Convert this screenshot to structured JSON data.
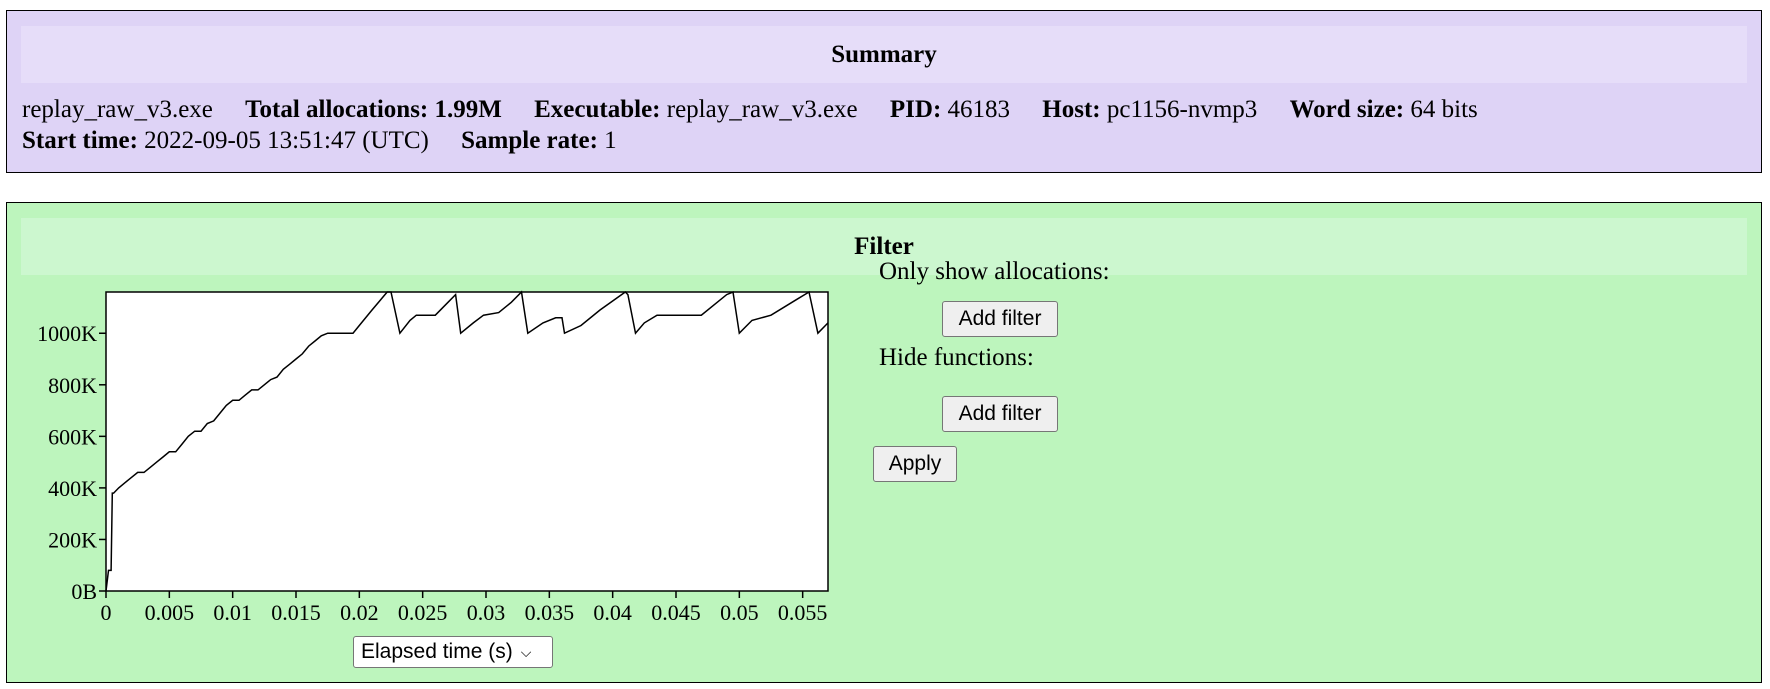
{
  "summary": {
    "title": "Summary",
    "program": "replay_raw_v3.exe",
    "fields": [
      {
        "label": "Total allocations:",
        "value": "1.99M",
        "bold_value": true
      },
      {
        "label": "Executable:",
        "value": "replay_raw_v3.exe"
      },
      {
        "label": "PID:",
        "value": "46183"
      },
      {
        "label": "Host:",
        "value": "pc1156-nvmp3"
      },
      {
        "label": "Word size:",
        "value": "64 bits"
      }
    ],
    "fields2": [
      {
        "label": "Start time:",
        "value": "2022-09-05 13:51:47 (UTC)"
      },
      {
        "label": "Sample rate:",
        "value": "1"
      }
    ]
  },
  "filter": {
    "title": "Filter",
    "only_show_label": "Only show allocations:",
    "hide_functions_label": "Hide functions:",
    "add_filter_label": "Add filter",
    "apply_label": "Apply",
    "x_axis_select": "Elapsed time (s)"
  },
  "chart_data": {
    "type": "line",
    "x_ticks": [
      "0",
      "0.005",
      "0.01",
      "0.015",
      "0.02",
      "0.025",
      "0.03",
      "0.035",
      "0.04",
      "0.045",
      "0.05",
      "0.055"
    ],
    "x_tick_values": [
      0,
      0.005,
      0.01,
      0.015,
      0.02,
      0.025,
      0.03,
      0.035,
      0.04,
      0.045,
      0.05,
      0.055
    ],
    "y_ticks": [
      "0B",
      "200K",
      "400K",
      "600K",
      "800K",
      "1000K"
    ],
    "y_tick_values": [
      0,
      200000,
      400000,
      600000,
      800000,
      1000000
    ],
    "xlim": [
      0,
      0.057
    ],
    "ylim": [
      0,
      1160000
    ],
    "series": [
      {
        "values": [
          [
            0,
            0
          ],
          [
            0.0002,
            80000
          ],
          [
            0.0004,
            80000
          ],
          [
            0.0005,
            380000
          ],
          [
            0.0006,
            380000
          ],
          [
            0.001,
            400000
          ],
          [
            0.0015,
            420000
          ],
          [
            0.002,
            440000
          ],
          [
            0.0025,
            460000
          ],
          [
            0.003,
            460000
          ],
          [
            0.0035,
            480000
          ],
          [
            0.004,
            500000
          ],
          [
            0.0045,
            520000
          ],
          [
            0.005,
            540000
          ],
          [
            0.0055,
            540000
          ],
          [
            0.006,
            570000
          ],
          [
            0.0065,
            600000
          ],
          [
            0.007,
            620000
          ],
          [
            0.0075,
            620000
          ],
          [
            0.008,
            650000
          ],
          [
            0.0085,
            660000
          ],
          [
            0.009,
            690000
          ],
          [
            0.0095,
            720000
          ],
          [
            0.01,
            740000
          ],
          [
            0.0105,
            740000
          ],
          [
            0.011,
            760000
          ],
          [
            0.0115,
            780000
          ],
          [
            0.012,
            780000
          ],
          [
            0.0125,
            800000
          ],
          [
            0.013,
            820000
          ],
          [
            0.0135,
            830000
          ],
          [
            0.014,
            860000
          ],
          [
            0.0145,
            880000
          ],
          [
            0.015,
            900000
          ],
          [
            0.0155,
            920000
          ],
          [
            0.016,
            950000
          ],
          [
            0.0165,
            970000
          ],
          [
            0.017,
            990000
          ],
          [
            0.0175,
            1000000
          ],
          [
            0.019,
            1000000
          ],
          [
            0.0195,
            1000000
          ],
          [
            0.02,
            1030000
          ],
          [
            0.021,
            1090000
          ],
          [
            0.0222,
            1160000
          ],
          [
            0.0225,
            1160000
          ],
          [
            0.0232,
            1000000
          ],
          [
            0.024,
            1050000
          ],
          [
            0.0245,
            1070000
          ],
          [
            0.026,
            1070000
          ],
          [
            0.027,
            1120000
          ],
          [
            0.0276,
            1150000
          ],
          [
            0.028,
            1000000
          ],
          [
            0.029,
            1040000
          ],
          [
            0.0298,
            1070000
          ],
          [
            0.031,
            1080000
          ],
          [
            0.032,
            1120000
          ],
          [
            0.0328,
            1160000
          ],
          [
            0.0333,
            1000000
          ],
          [
            0.0345,
            1040000
          ],
          [
            0.0355,
            1060000
          ],
          [
            0.036,
            1060000
          ],
          [
            0.0362,
            1000000
          ],
          [
            0.0375,
            1030000
          ],
          [
            0.039,
            1090000
          ],
          [
            0.041,
            1160000
          ],
          [
            0.0412,
            1150000
          ],
          [
            0.0418,
            1000000
          ],
          [
            0.0425,
            1040000
          ],
          [
            0.0435,
            1070000
          ],
          [
            0.047,
            1070000
          ],
          [
            0.049,
            1150000
          ],
          [
            0.0495,
            1160000
          ],
          [
            0.05,
            1000000
          ],
          [
            0.051,
            1050000
          ],
          [
            0.0525,
            1070000
          ],
          [
            0.0545,
            1130000
          ],
          [
            0.0555,
            1160000
          ],
          [
            0.0562,
            1000000
          ],
          [
            0.057,
            1040000
          ]
        ]
      }
    ]
  }
}
